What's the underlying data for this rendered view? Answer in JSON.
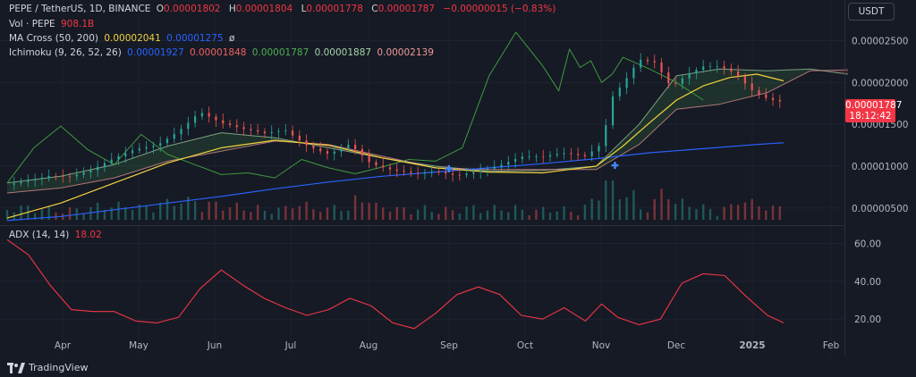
{
  "header": {
    "symbol": "PEPE / TetherUS, 1D, BINANCE",
    "ohlc": [
      {
        "k": "O",
        "v": "0.00001802"
      },
      {
        "k": "H",
        "v": "0.00001804"
      },
      {
        "k": "L",
        "v": "0.00001778"
      },
      {
        "k": "C",
        "v": "0.00001787"
      }
    ],
    "change": "−0.00000015 (−0.83%)"
  },
  "indicators": {
    "vol": {
      "label": "Vol · PEPE",
      "value": "908.1B"
    },
    "ma_cross": {
      "label": "MA Cross (50, 200)",
      "v1": "0.00002041",
      "v2": "0.00001275",
      "extra": "ø"
    },
    "ichimoku": {
      "label": "Ichimoku (9, 26, 52, 26)",
      "values": [
        "0.00001927",
        "0.00001848",
        "0.00001787",
        "0.00001887",
        "0.00002139"
      ]
    },
    "adx": {
      "label": "ADX (14, 14)",
      "value": "18.02"
    }
  },
  "currency_button": "USDT",
  "price_tag": {
    "price": "0.00001787",
    "countdown": "18:12:42"
  },
  "branding": "TradingView",
  "colors": {
    "up": "#26a69a",
    "down": "#ef5350",
    "ma_fast": "#f2d23c",
    "ma_slow": "#2962ff",
    "adx": "#f23645",
    "cloud": "#a5d6a7",
    "tag": "#f23645"
  },
  "chart_data": {
    "type": "line",
    "price_axis": {
      "ticks": [
        "0.00002500",
        "0.00002000",
        "0.00001500",
        "0.00001000",
        "0.00000500"
      ],
      "range": [
        3.6e-06,
        2.9e-05
      ]
    },
    "adx_axis": {
      "ticks": [
        "60.00",
        "40.00",
        "20.00"
      ],
      "range": [
        13,
        65
      ]
    },
    "x_axis": {
      "labels": [
        "Apr",
        "May",
        "Jun",
        "Jul",
        "Aug",
        "Sep",
        "Oct",
        "Nov",
        "Dec",
        "2025",
        "Feb"
      ]
    },
    "x_range": [
      0,
      320
    ],
    "series": [
      {
        "key": "close",
        "x": [
          0,
          8,
          16,
          24,
          32,
          40,
          48,
          56,
          64,
          72,
          80,
          88,
          96,
          104,
          112,
          120,
          128,
          136,
          144,
          152,
          160,
          168,
          176,
          184,
          192,
          200,
          208,
          216,
          222,
          226,
          230,
          236,
          242,
          248,
          254,
          260,
          266,
          272,
          278,
          284,
          290
        ],
        "values": [
          7.8,
          8.6,
          9.2,
          8.9,
          9.4,
          10.6,
          11.8,
          12.6,
          14.5,
          16.8,
          15.2,
          14.2,
          13.6,
          14.1,
          12.6,
          11.8,
          12.9,
          10.2,
          9.2,
          8.8,
          9.3,
          9.1,
          9.8,
          10.3,
          11.0,
          10.8,
          11.3,
          11.2,
          12.9,
          18.6,
          20.2,
          23.0,
          22.4,
          19.2,
          20.6,
          21.6,
          21.8,
          21.2,
          19.4,
          18.4,
          17.9
        ]
      },
      {
        "key": "ma50",
        "x": [
          0,
          20,
          40,
          60,
          80,
          100,
          120,
          140,
          160,
          180,
          200,
          220,
          230,
          240,
          250,
          260,
          270,
          280,
          290
        ],
        "values": [
          3.8,
          5.6,
          8.0,
          10.4,
          12.2,
          13.1,
          12.5,
          11.0,
          9.8,
          9.3,
          9.2,
          10.0,
          12.4,
          15.2,
          17.9,
          19.6,
          20.6,
          21.0,
          20.2
        ]
      },
      {
        "key": "ma200",
        "x": [
          0,
          20,
          40,
          60,
          80,
          100,
          120,
          140,
          160,
          180,
          200,
          220,
          240,
          260,
          280,
          290
        ],
        "values": [
          3.5,
          4.0,
          4.8,
          5.6,
          6.4,
          7.3,
          8.1,
          8.8,
          9.3,
          9.8,
          10.3,
          10.9,
          11.6,
          12.1,
          12.6,
          12.8
        ]
      },
      {
        "key": "senkou_a",
        "x": [
          0,
          20,
          40,
          60,
          80,
          100,
          120,
          140,
          160,
          180,
          200,
          220,
          236,
          250,
          266,
          284,
          300,
          314
        ],
        "values": [
          8.0,
          8.8,
          10.2,
          12.4,
          14.0,
          13.4,
          12.2,
          11.0,
          10.0,
          9.4,
          9.5,
          10.0,
          15.0,
          20.8,
          21.6,
          21.4,
          21.6,
          21.0
        ]
      },
      {
        "key": "senkou_b",
        "x": [
          0,
          20,
          40,
          60,
          80,
          100,
          120,
          140,
          160,
          180,
          200,
          220,
          236,
          250,
          266,
          284,
          300,
          314
        ],
        "values": [
          6.8,
          7.4,
          8.6,
          10.6,
          11.8,
          13.0,
          12.6,
          11.2,
          9.8,
          9.6,
          9.6,
          9.6,
          12.6,
          16.8,
          17.4,
          18.8,
          21.4,
          21.5
        ]
      },
      {
        "key": "chikou",
        "x": [
          0,
          10,
          20,
          30,
          40,
          50,
          60,
          70,
          80,
          90,
          100,
          110,
          120,
          130,
          140,
          150,
          160,
          170,
          180,
          190,
          200,
          206,
          210,
          214,
          218,
          222,
          226,
          230,
          240,
          250,
          260
        ],
        "values": [
          8.0,
          12.2,
          14.8,
          12.0,
          10.2,
          13.8,
          11.4,
          10.2,
          9.0,
          9.2,
          8.6,
          10.8,
          9.8,
          9.1,
          9.9,
          10.8,
          10.6,
          12.2,
          20.8,
          26.0,
          22.0,
          19.0,
          24.0,
          21.8,
          22.6,
          20.0,
          21.0,
          23.0,
          21.6,
          20.0,
          17.9
        ]
      },
      {
        "key": "adx",
        "x": [
          0,
          8,
          16,
          24,
          32,
          40,
          48,
          56,
          64,
          72,
          80,
          88,
          96,
          104,
          112,
          120,
          128,
          136,
          144,
          152,
          160,
          168,
          176,
          184,
          192,
          200,
          208,
          216,
          222,
          228,
          236,
          244,
          252,
          260,
          268,
          276,
          284,
          290
        ],
        "values": [
          62,
          54,
          38,
          25,
          24,
          24,
          19,
          18,
          21,
          36,
          46,
          38,
          31,
          26,
          22,
          25,
          31,
          27,
          18,
          15,
          23,
          33,
          37,
          33,
          22,
          20,
          26,
          19,
          28,
          21,
          17,
          20,
          39,
          44,
          43,
          32,
          22,
          18
        ]
      }
    ]
  }
}
